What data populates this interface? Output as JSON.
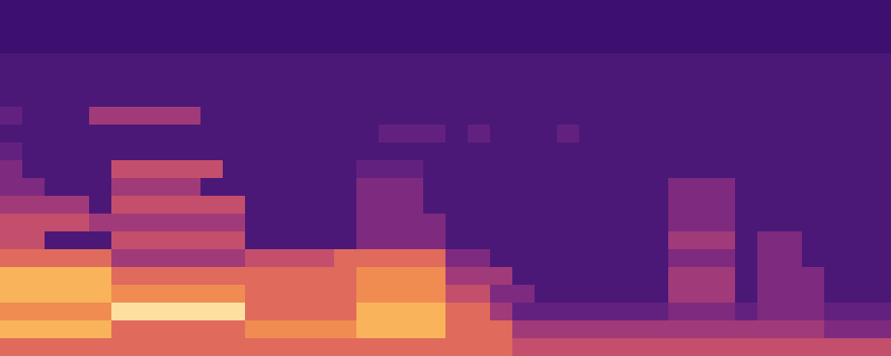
{
  "chart_data": {
    "type": "heatmap",
    "tick_labels": false,
    "zlim": [
      0,
      9
    ],
    "cells": [
      [
        0,
        0,
        0,
        0,
        0,
        0,
        0,
        0,
        0,
        0,
        0,
        0,
        0,
        0,
        0,
        0,
        0,
        0,
        0,
        0,
        0,
        0,
        0,
        0,
        0,
        0,
        0,
        0,
        0,
        0,
        0,
        0,
        0,
        0,
        0,
        0,
        0,
        0,
        0,
        0
      ],
      [
        0,
        0,
        0,
        0,
        0,
        0,
        0,
        0,
        0,
        0,
        0,
        0,
        0,
        0,
        0,
        0,
        0,
        0,
        0,
        0,
        0,
        0,
        0,
        0,
        0,
        0,
        0,
        0,
        0,
        0,
        0,
        0,
        0,
        0,
        0,
        0,
        0,
        0,
        0,
        0
      ],
      [
        0,
        0,
        0,
        0,
        0,
        0,
        0,
        0,
        0,
        0,
        0,
        0,
        0,
        0,
        0,
        0,
        0,
        0,
        0,
        0,
        0,
        0,
        0,
        0,
        0,
        0,
        0,
        0,
        0,
        0,
        0,
        0,
        0,
        0,
        0,
        0,
        0,
        0,
        0,
        0
      ],
      [
        1,
        1,
        1,
        1,
        1,
        1,
        1,
        1,
        1,
        1,
        1,
        1,
        1,
        1,
        1,
        1,
        1,
        1,
        1,
        1,
        1,
        1,
        1,
        1,
        1,
        1,
        1,
        1,
        1,
        1,
        1,
        1,
        1,
        1,
        1,
        1,
        1,
        1,
        1,
        1
      ],
      [
        1,
        1,
        1,
        1,
        1,
        1,
        1,
        1,
        1,
        1,
        1,
        1,
        1,
        1,
        1,
        1,
        1,
        1,
        1,
        1,
        1,
        1,
        1,
        1,
        1,
        1,
        1,
        1,
        1,
        1,
        1,
        1,
        1,
        1,
        1,
        1,
        1,
        1,
        1,
        1
      ],
      [
        1,
        1,
        1,
        1,
        1,
        1,
        1,
        1,
        1,
        1,
        1,
        1,
        1,
        1,
        1,
        1,
        1,
        1,
        1,
        1,
        1,
        1,
        1,
        1,
        1,
        1,
        1,
        1,
        1,
        1,
        1,
        1,
        1,
        1,
        1,
        1,
        1,
        1,
        1,
        1
      ],
      [
        2,
        1,
        1,
        1,
        4,
        4,
        4,
        4,
        4,
        1,
        1,
        1,
        1,
        1,
        1,
        1,
        1,
        1,
        1,
        1,
        1,
        1,
        1,
        1,
        1,
        1,
        1,
        1,
        1,
        1,
        1,
        1,
        1,
        1,
        1,
        1,
        1,
        1,
        1,
        1
      ],
      [
        1,
        1,
        1,
        1,
        1,
        1,
        1,
        1,
        1,
        1,
        1,
        1,
        1,
        1,
        1,
        1,
        1,
        2,
        2,
        2,
        1,
        2,
        1,
        1,
        1,
        2,
        1,
        1,
        1,
        1,
        1,
        1,
        1,
        1,
        1,
        1,
        1,
        1,
        1,
        1
      ],
      [
        2,
        1,
        1,
        1,
        1,
        1,
        1,
        1,
        1,
        1,
        1,
        1,
        1,
        1,
        1,
        1,
        1,
        1,
        1,
        1,
        1,
        1,
        1,
        1,
        1,
        1,
        1,
        1,
        1,
        1,
        1,
        1,
        1,
        1,
        1,
        1,
        1,
        1,
        1,
        1
      ],
      [
        3,
        1,
        1,
        1,
        1,
        5,
        5,
        5,
        5,
        5,
        1,
        1,
        1,
        1,
        1,
        1,
        2,
        2,
        2,
        1,
        1,
        1,
        1,
        1,
        1,
        1,
        1,
        1,
        1,
        1,
        1,
        1,
        1,
        1,
        1,
        1,
        1,
        1,
        1,
        1
      ],
      [
        3,
        3,
        1,
        1,
        1,
        4,
        4,
        4,
        4,
        1,
        1,
        1,
        1,
        1,
        1,
        1,
        3,
        3,
        3,
        1,
        1,
        1,
        1,
        1,
        1,
        1,
        1,
        1,
        1,
        1,
        3,
        3,
        3,
        1,
        1,
        1,
        1,
        1,
        1,
        1
      ],
      [
        4,
        4,
        4,
        4,
        1,
        5,
        5,
        5,
        5,
        5,
        5,
        1,
        1,
        1,
        1,
        1,
        3,
        3,
        3,
        1,
        1,
        1,
        1,
        1,
        1,
        1,
        1,
        1,
        1,
        1,
        3,
        3,
        3,
        1,
        1,
        1,
        1,
        1,
        1,
        1
      ],
      [
        5,
        5,
        5,
        5,
        4,
        4,
        4,
        4,
        4,
        4,
        4,
        1,
        1,
        1,
        1,
        1,
        3,
        3,
        3,
        3,
        1,
        1,
        1,
        1,
        1,
        1,
        1,
        1,
        1,
        1,
        3,
        3,
        3,
        1,
        1,
        1,
        1,
        1,
        1,
        1
      ],
      [
        5,
        5,
        1,
        1,
        1,
        5,
        5,
        5,
        5,
        5,
        5,
        1,
        1,
        1,
        1,
        1,
        3,
        3,
        3,
        3,
        1,
        1,
        1,
        1,
        1,
        1,
        1,
        1,
        1,
        1,
        4,
        4,
        4,
        1,
        3,
        3,
        1,
        1,
        1,
        1
      ],
      [
        6,
        6,
        6,
        6,
        6,
        4,
        4,
        4,
        4,
        4,
        4,
        5,
        5,
        5,
        5,
        6,
        6,
        6,
        6,
        6,
        3,
        3,
        1,
        1,
        1,
        1,
        1,
        1,
        1,
        1,
        3,
        3,
        3,
        1,
        3,
        3,
        1,
        1,
        1,
        1
      ],
      [
        8,
        8,
        8,
        8,
        8,
        6,
        6,
        6,
        6,
        6,
        6,
        6,
        6,
        6,
        6,
        6,
        7,
        7,
        7,
        7,
        4,
        4,
        4,
        1,
        1,
        1,
        1,
        1,
        1,
        1,
        4,
        4,
        4,
        1,
        3,
        3,
        3,
        1,
        1,
        1
      ],
      [
        8,
        8,
        8,
        8,
        8,
        7,
        7,
        7,
        7,
        7,
        7,
        6,
        6,
        6,
        6,
        6,
        7,
        7,
        7,
        7,
        5,
        5,
        3,
        3,
        1,
        1,
        1,
        1,
        1,
        1,
        4,
        4,
        4,
        1,
        3,
        3,
        3,
        1,
        1,
        1
      ],
      [
        7,
        7,
        7,
        7,
        7,
        9,
        9,
        9,
        9,
        9,
        9,
        6,
        6,
        6,
        6,
        6,
        8,
        8,
        8,
        8,
        6,
        6,
        4,
        2,
        2,
        2,
        2,
        2,
        2,
        2,
        3,
        3,
        3,
        2,
        3,
        3,
        3,
        2,
        2,
        2
      ],
      [
        8,
        8,
        8,
        8,
        8,
        6,
        6,
        6,
        6,
        6,
        6,
        7,
        7,
        7,
        7,
        7,
        8,
        8,
        8,
        8,
        6,
        6,
        6,
        4,
        4,
        4,
        4,
        4,
        4,
        4,
        4,
        4,
        4,
        4,
        4,
        4,
        4,
        3,
        3,
        3
      ],
      [
        6,
        6,
        6,
        6,
        6,
        6,
        6,
        6,
        6,
        6,
        6,
        6,
        6,
        6,
        6,
        6,
        6,
        6,
        6,
        6,
        6,
        6,
        6,
        5,
        5,
        5,
        5,
        5,
        5,
        5,
        5,
        5,
        5,
        5,
        5,
        5,
        5,
        5,
        5,
        5
      ]
    ]
  }
}
